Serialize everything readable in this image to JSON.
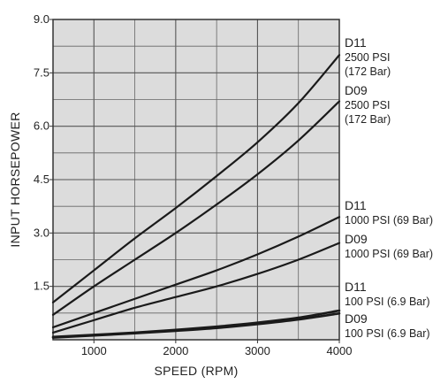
{
  "chart_data": {
    "type": "line",
    "title": "",
    "xlabel": "SPEED (RPM)",
    "ylabel": "INPUT HORSEPOWER",
    "xlim": [
      500,
      4000
    ],
    "ylim": [
      0,
      9
    ],
    "x_ticks": [
      1000,
      2000,
      3000,
      4000
    ],
    "x_tick_labels": [
      "1000",
      "2000",
      "3000",
      "4000"
    ],
    "y_ticks": [
      1.5,
      3.0,
      4.5,
      6.0,
      7.5,
      9.0
    ],
    "y_tick_labels": [
      "1.5",
      "3.0",
      "4.5",
      "6.0",
      "7.5",
      "9.0"
    ],
    "grid": true,
    "legend": "curve labels at right edge",
    "series": [
      {
        "name": "D11",
        "label_lines": [
          "D11",
          "2500 PSI",
          "(172 Bar)"
        ],
        "x": [
          500,
          1000,
          1500,
          2000,
          2500,
          3000,
          3500,
          4000
        ],
        "y": [
          1.05,
          1.95,
          2.85,
          3.7,
          4.6,
          5.55,
          6.65,
          8.0
        ]
      },
      {
        "name": "D09",
        "label_lines": [
          "D09",
          "2500 PSI",
          "(172 Bar)"
        ],
        "x": [
          500,
          1000,
          1500,
          2000,
          2500,
          3000,
          3500,
          4000
        ],
        "y": [
          0.7,
          1.5,
          2.25,
          3.0,
          3.8,
          4.65,
          5.6,
          6.7
        ]
      },
      {
        "name": "D11",
        "label_lines": [
          "D11",
          "1000 PSI (69 Bar)"
        ],
        "x": [
          500,
          1000,
          1500,
          2000,
          2500,
          3000,
          3500,
          4000
        ],
        "y": [
          0.35,
          0.75,
          1.15,
          1.55,
          1.95,
          2.4,
          2.9,
          3.45
        ]
      },
      {
        "name": "D09",
        "label_lines": [
          "D09",
          "1000 PSI (69 Bar)"
        ],
        "x": [
          500,
          1000,
          1500,
          2000,
          2500,
          3000,
          3500,
          4000
        ],
        "y": [
          0.2,
          0.55,
          0.9,
          1.2,
          1.5,
          1.85,
          2.25,
          2.72
        ]
      },
      {
        "name": "D11",
        "label_lines": [
          "D11",
          "100 PSI (6.9 Bar)"
        ],
        "x": [
          500,
          1000,
          1500,
          2000,
          2500,
          3000,
          3500,
          4000
        ],
        "y": [
          0.08,
          0.14,
          0.2,
          0.28,
          0.37,
          0.48,
          0.62,
          0.82
        ]
      },
      {
        "name": "D09",
        "label_lines": [
          "D09",
          "100 PSI (6.9 Bar)"
        ],
        "x": [
          500,
          1000,
          1500,
          2000,
          2500,
          3000,
          3500,
          4000
        ],
        "y": [
          0.06,
          0.12,
          0.18,
          0.25,
          0.33,
          0.44,
          0.57,
          0.74
        ]
      }
    ]
  }
}
